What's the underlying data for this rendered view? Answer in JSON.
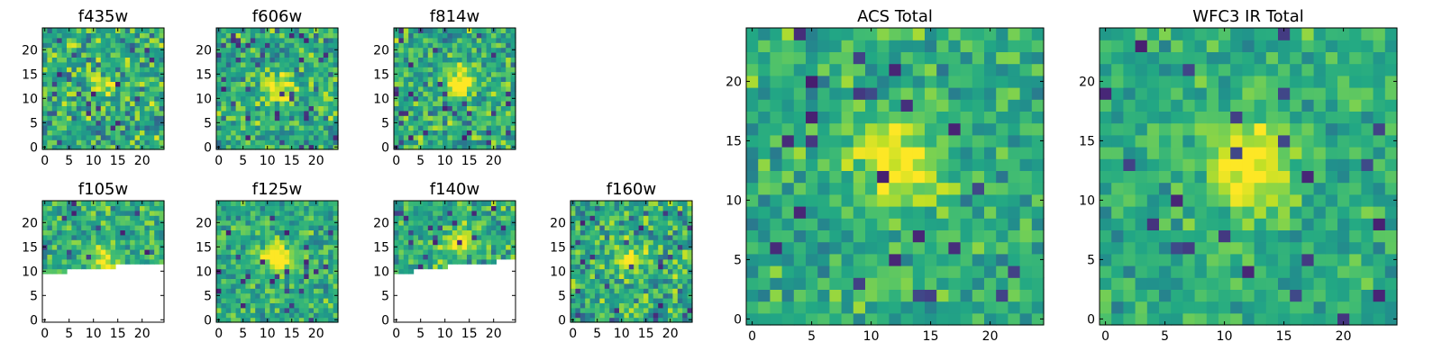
{
  "figure": {
    "background": "#ffffff"
  },
  "chart_data": [
    {
      "type": "heatmap",
      "title": "f435w",
      "grid": false,
      "colormap": "viridis",
      "xlim": [
        0,
        24
      ],
      "ylim": [
        0,
        24
      ],
      "xticks": [
        0,
        5,
        10,
        15,
        20
      ],
      "yticks": [
        0,
        5,
        10,
        15,
        20
      ],
      "peak": [
        12,
        12
      ],
      "peak_strength": 0.25,
      "noise": 0.3,
      "seed": 11
    },
    {
      "type": "heatmap",
      "title": "f606w",
      "grid": false,
      "colormap": "viridis",
      "xlim": [
        0,
        24
      ],
      "ylim": [
        0,
        24
      ],
      "xticks": [
        0,
        5,
        10,
        15,
        20
      ],
      "yticks": [
        0,
        5,
        10,
        15,
        20
      ],
      "peak": [
        12,
        12
      ],
      "peak_strength": 0.5,
      "noise": 0.28,
      "seed": 23
    },
    {
      "type": "heatmap",
      "title": "f814w",
      "grid": false,
      "colormap": "viridis",
      "xlim": [
        0,
        24
      ],
      "ylim": [
        0,
        24
      ],
      "xticks": [
        0,
        5,
        10,
        15,
        20
      ],
      "yticks": [
        0,
        5,
        10,
        15,
        20
      ],
      "peak": [
        13,
        13
      ],
      "peak_strength": 0.5,
      "noise": 0.28,
      "seed": 37
    },
    {
      "type": "heatmap",
      "title": "f105w",
      "grid": false,
      "colormap": "viridis",
      "xlim": [
        0,
        24
      ],
      "ylim": [
        0,
        24
      ],
      "xticks": [
        0,
        5,
        10,
        15,
        20
      ],
      "yticks": [
        0,
        5,
        10,
        15,
        20
      ],
      "peak": [
        12,
        12
      ],
      "peak_strength": 0.45,
      "noise": 0.25,
      "seed": 41,
      "missing_below_row": [
        10,
        10,
        10,
        10,
        10,
        11,
        11,
        11,
        11,
        11,
        11,
        11,
        11,
        11,
        11,
        12,
        12,
        12,
        12,
        12,
        12,
        12,
        12,
        12,
        12
      ]
    },
    {
      "type": "heatmap",
      "title": "f125w",
      "grid": false,
      "colormap": "viridis",
      "xlim": [
        0,
        24
      ],
      "ylim": [
        0,
        24
      ],
      "xticks": [
        0,
        5,
        10,
        15,
        20
      ],
      "yticks": [
        0,
        5,
        10,
        15,
        20
      ],
      "peak": [
        12,
        13
      ],
      "peak_strength": 0.55,
      "noise": 0.22,
      "seed": 53
    },
    {
      "type": "heatmap",
      "title": "f140w",
      "grid": false,
      "colormap": "viridis",
      "xlim": [
        0,
        24
      ],
      "ylim": [
        0,
        24
      ],
      "xticks": [
        0,
        5,
        10,
        15,
        20
      ],
      "yticks": [
        0,
        5,
        10,
        15,
        20
      ],
      "peak": [
        13,
        16
      ],
      "peak_strength": 0.4,
      "noise": 0.25,
      "seed": 67,
      "missing_below_row": [
        10,
        10,
        10,
        10,
        11,
        11,
        11,
        11,
        11,
        11,
        11,
        12,
        12,
        12,
        12,
        12,
        12,
        12,
        12,
        12,
        12,
        13,
        13,
        13,
        13
      ]
    },
    {
      "type": "heatmap",
      "title": "f160w",
      "grid": false,
      "colormap": "viridis",
      "xlim": [
        0,
        24
      ],
      "ylim": [
        0,
        24
      ],
      "xticks": [
        0,
        5,
        10,
        15,
        20
      ],
      "yticks": [
        0,
        5,
        10,
        15,
        20
      ],
      "peak": [
        12,
        12
      ],
      "peak_strength": 0.45,
      "noise": 0.3,
      "seed": 79
    },
    {
      "type": "heatmap",
      "title": "ACS Total",
      "grid": false,
      "colormap": "viridis",
      "xlim": [
        0,
        24
      ],
      "ylim": [
        0,
        24
      ],
      "xticks": [
        0,
        5,
        10,
        15,
        20
      ],
      "yticks": [
        0,
        5,
        10,
        15,
        20
      ],
      "peak": [
        12,
        13
      ],
      "peak_strength": 0.45,
      "noise": 0.22,
      "seed": 97
    },
    {
      "type": "heatmap",
      "title": "WFC3 IR Total",
      "grid": false,
      "colormap": "viridis",
      "xlim": [
        0,
        24
      ],
      "ylim": [
        0,
        24
      ],
      "xticks": [
        0,
        5,
        10,
        15,
        20
      ],
      "yticks": [
        0,
        5,
        10,
        15,
        20
      ],
      "peak": [
        12,
        13
      ],
      "peak_strength": 0.5,
      "noise": 0.18,
      "seed": 113
    }
  ]
}
